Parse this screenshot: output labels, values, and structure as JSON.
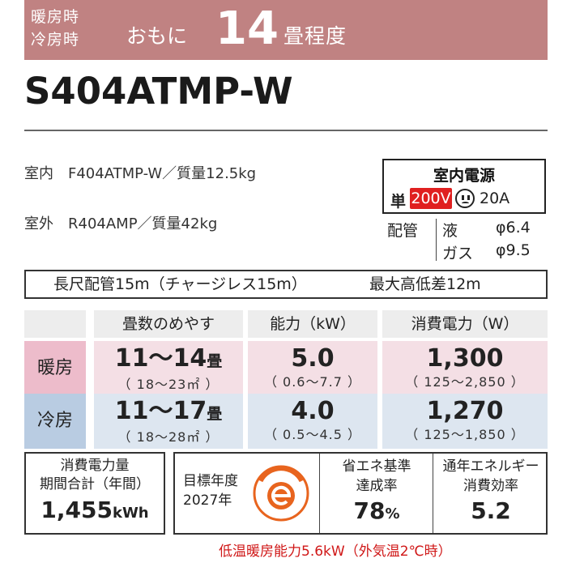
{
  "header": {
    "line1": "暖房時",
    "line2": "冷房時",
    "omoni": "おもに",
    "tatami_count": "14",
    "tatami_unit": "畳程度",
    "bg_color": "#c08282"
  },
  "model": "S404ATMP-W",
  "indoor": "室内　F404ATMP-W／質量12.5kg",
  "outdoor": "室外　R404AMP／質量42kg",
  "power": {
    "title": "室内電源",
    "phase": "単",
    "voltage": "200V",
    "plug_icon": "outlet-plug-icon",
    "amperage": "20A",
    "voltage_color": "#e02020"
  },
  "piping": {
    "label": "配管",
    "liquid_label": "液",
    "liquid_value": "φ6.4",
    "gas_label": "ガス",
    "gas_value": "φ9.5"
  },
  "long_pipe": {
    "left": "長尺配管15m（チャージレス15m）",
    "right": "最大高低差12m"
  },
  "table": {
    "headers": [
      "畳数のめやす",
      "能力（kW）",
      "消費電力（W）"
    ],
    "heating": {
      "label": "暖房",
      "tatami": "11～14",
      "tatami_unit": "畳",
      "tatami_range": "（ 18～23㎡ ）",
      "capacity": "5.0",
      "capacity_range": "（ 0.6～7.7 ）",
      "power": "1,300",
      "power_range": "（ 125～2,850 ）"
    },
    "cooling": {
      "label": "冷房",
      "tatami": "11～17",
      "tatami_unit": "畳",
      "tatami_range": "（ 18～28㎡ ）",
      "capacity": "4.0",
      "capacity_range": "（ 0.5～4.5 ）",
      "power": "1,270",
      "power_range": "（ 125～1,850 ）"
    }
  },
  "annual": {
    "line1": "消費電力量",
    "line2": "期間合計（年間）",
    "value": "1,455",
    "unit": "kWh"
  },
  "efficiency": {
    "target_line1": "目標年度",
    "target_line2": "2027年",
    "emark_icon": "energy-saving-e-mark-icon",
    "emark_color": "#e8641e",
    "std_line1": "省エネ基準",
    "std_line2": "達成率",
    "std_value": "78",
    "std_unit": "%",
    "apf_line1": "通年エネルギー",
    "apf_line2": "消費効率",
    "apf_value": "5.2"
  },
  "low_temp_note": "低温暖房能力5.6kW（外気温2℃時）"
}
